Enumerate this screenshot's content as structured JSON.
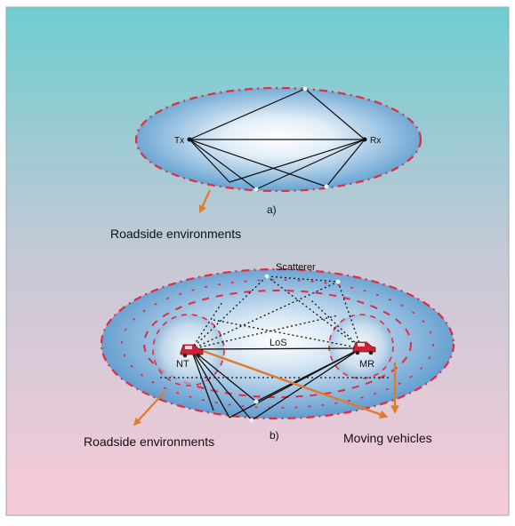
{
  "panel_a": {
    "tx_label": "Tx",
    "rx_label": "Rx",
    "caption": "a)",
    "env_label": "Roadside environments"
  },
  "panel_b": {
    "scatterer_label": "Scatterer",
    "los_label": "LoS",
    "nt_label": "NT",
    "mr_label": "MR",
    "caption": "b)",
    "env_label": "Roadside environments",
    "vehicles_label": "Moving vehicles"
  },
  "colors": {
    "bg_top": "#6ecdd0",
    "bg_bottom": "#f7cad8",
    "ellipse_outer": "#5e9fd0",
    "ellipse_inner": "#ffffff",
    "dash_red": "#e8283c",
    "arrow_orange": "#e07a2c",
    "vehicle_red": "#cc2233"
  }
}
